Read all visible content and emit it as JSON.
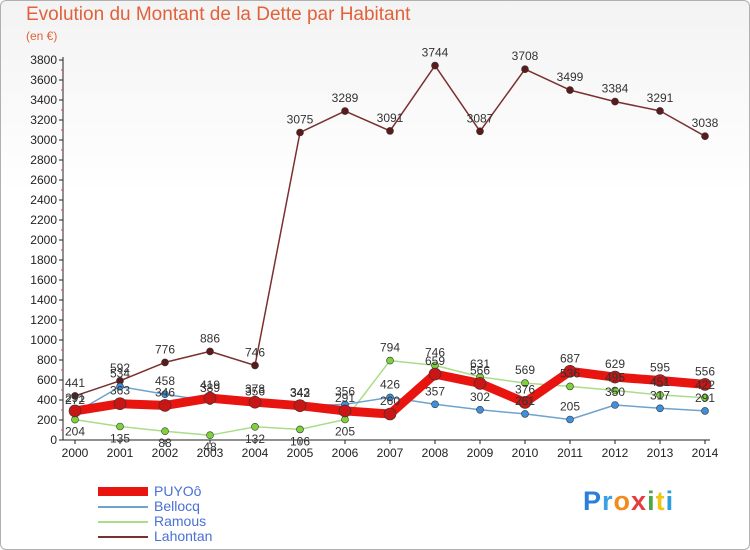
{
  "title": "Evolution du Montant de la Dette par Habitant",
  "unit": "(en €)",
  "logo": {
    "letters": [
      "P",
      "r",
      "o",
      "x",
      "i",
      "t",
      "i"
    ],
    "colors": [
      "#2b7fd8",
      "#3ba0e6",
      "#f28a1e",
      "#e53d3d",
      "#4aa84a",
      "#f0c418",
      "#2b9fdd"
    ]
  },
  "chart_data": {
    "type": "line",
    "x": [
      2000,
      2001,
      2002,
      2003,
      2004,
      2005,
      2006,
      2007,
      2008,
      2009,
      2010,
      2011,
      2012,
      2013,
      2014
    ],
    "ylim": [
      0,
      3800
    ],
    "yticks": [
      0,
      200,
      400,
      600,
      800,
      1000,
      1200,
      1400,
      1600,
      1800,
      2000,
      2200,
      2400,
      2600,
      2800,
      3000,
      3200,
      3400,
      3600,
      3800
    ],
    "grid": false,
    "legend_position": "bottom-left",
    "series": [
      {
        "name": "PUYOô",
        "color": "#e8140f",
        "marker": "#c81515",
        "values": [
          291,
          363,
          346,
          419,
          378,
          343,
          291,
          260,
          659,
          566,
          376,
          687,
          629,
          595,
          556
        ],
        "labels": [
          "291",
          "363",
          "346",
          "419",
          "378",
          "343",
          "291",
          "260",
          "659",
          "566",
          "376",
          "687",
          "629",
          "595",
          "556"
        ]
      },
      {
        "name": "Bellocq",
        "color": "#6fa3ce",
        "marker": "#3f8fdc",
        "values": [
          272,
          534,
          458,
          389,
          356,
          342,
          356,
          426,
          357,
          302,
          261,
          205,
          350,
          317,
          291
        ],
        "labels": [
          "272",
          "534",
          "458",
          "389",
          "356",
          "342",
          "356",
          "426",
          "357",
          "302",
          "261",
          "205",
          "350",
          "317",
          "291"
        ]
      },
      {
        "name": "Ramous",
        "color": "#a9dd88",
        "marker": "#7fd13b",
        "values": [
          204,
          135,
          88,
          48,
          132,
          106,
          205,
          794,
          746,
          631,
          569,
          536,
          495,
          451,
          422
        ],
        "labels": [
          "204",
          "135",
          "88",
          "48",
          "132",
          "106",
          "205",
          "794",
          "746",
          "631",
          "569",
          "536",
          "495",
          "451",
          "422"
        ]
      },
      {
        "name": "Lahontan",
        "color": "#7a3030",
        "marker": "#5c1a1a",
        "values": [
          441,
          592,
          776,
          886,
          746,
          3075,
          3289,
          3091,
          3744,
          3087,
          3708,
          3499,
          3384,
          3291,
          3038
        ],
        "labels": [
          "441",
          "592",
          "776",
          "886",
          "746",
          "3075",
          "3289",
          "3091",
          "3744",
          "3087",
          "3708",
          "3499",
          "3384",
          "3291",
          "3038"
        ]
      }
    ]
  }
}
